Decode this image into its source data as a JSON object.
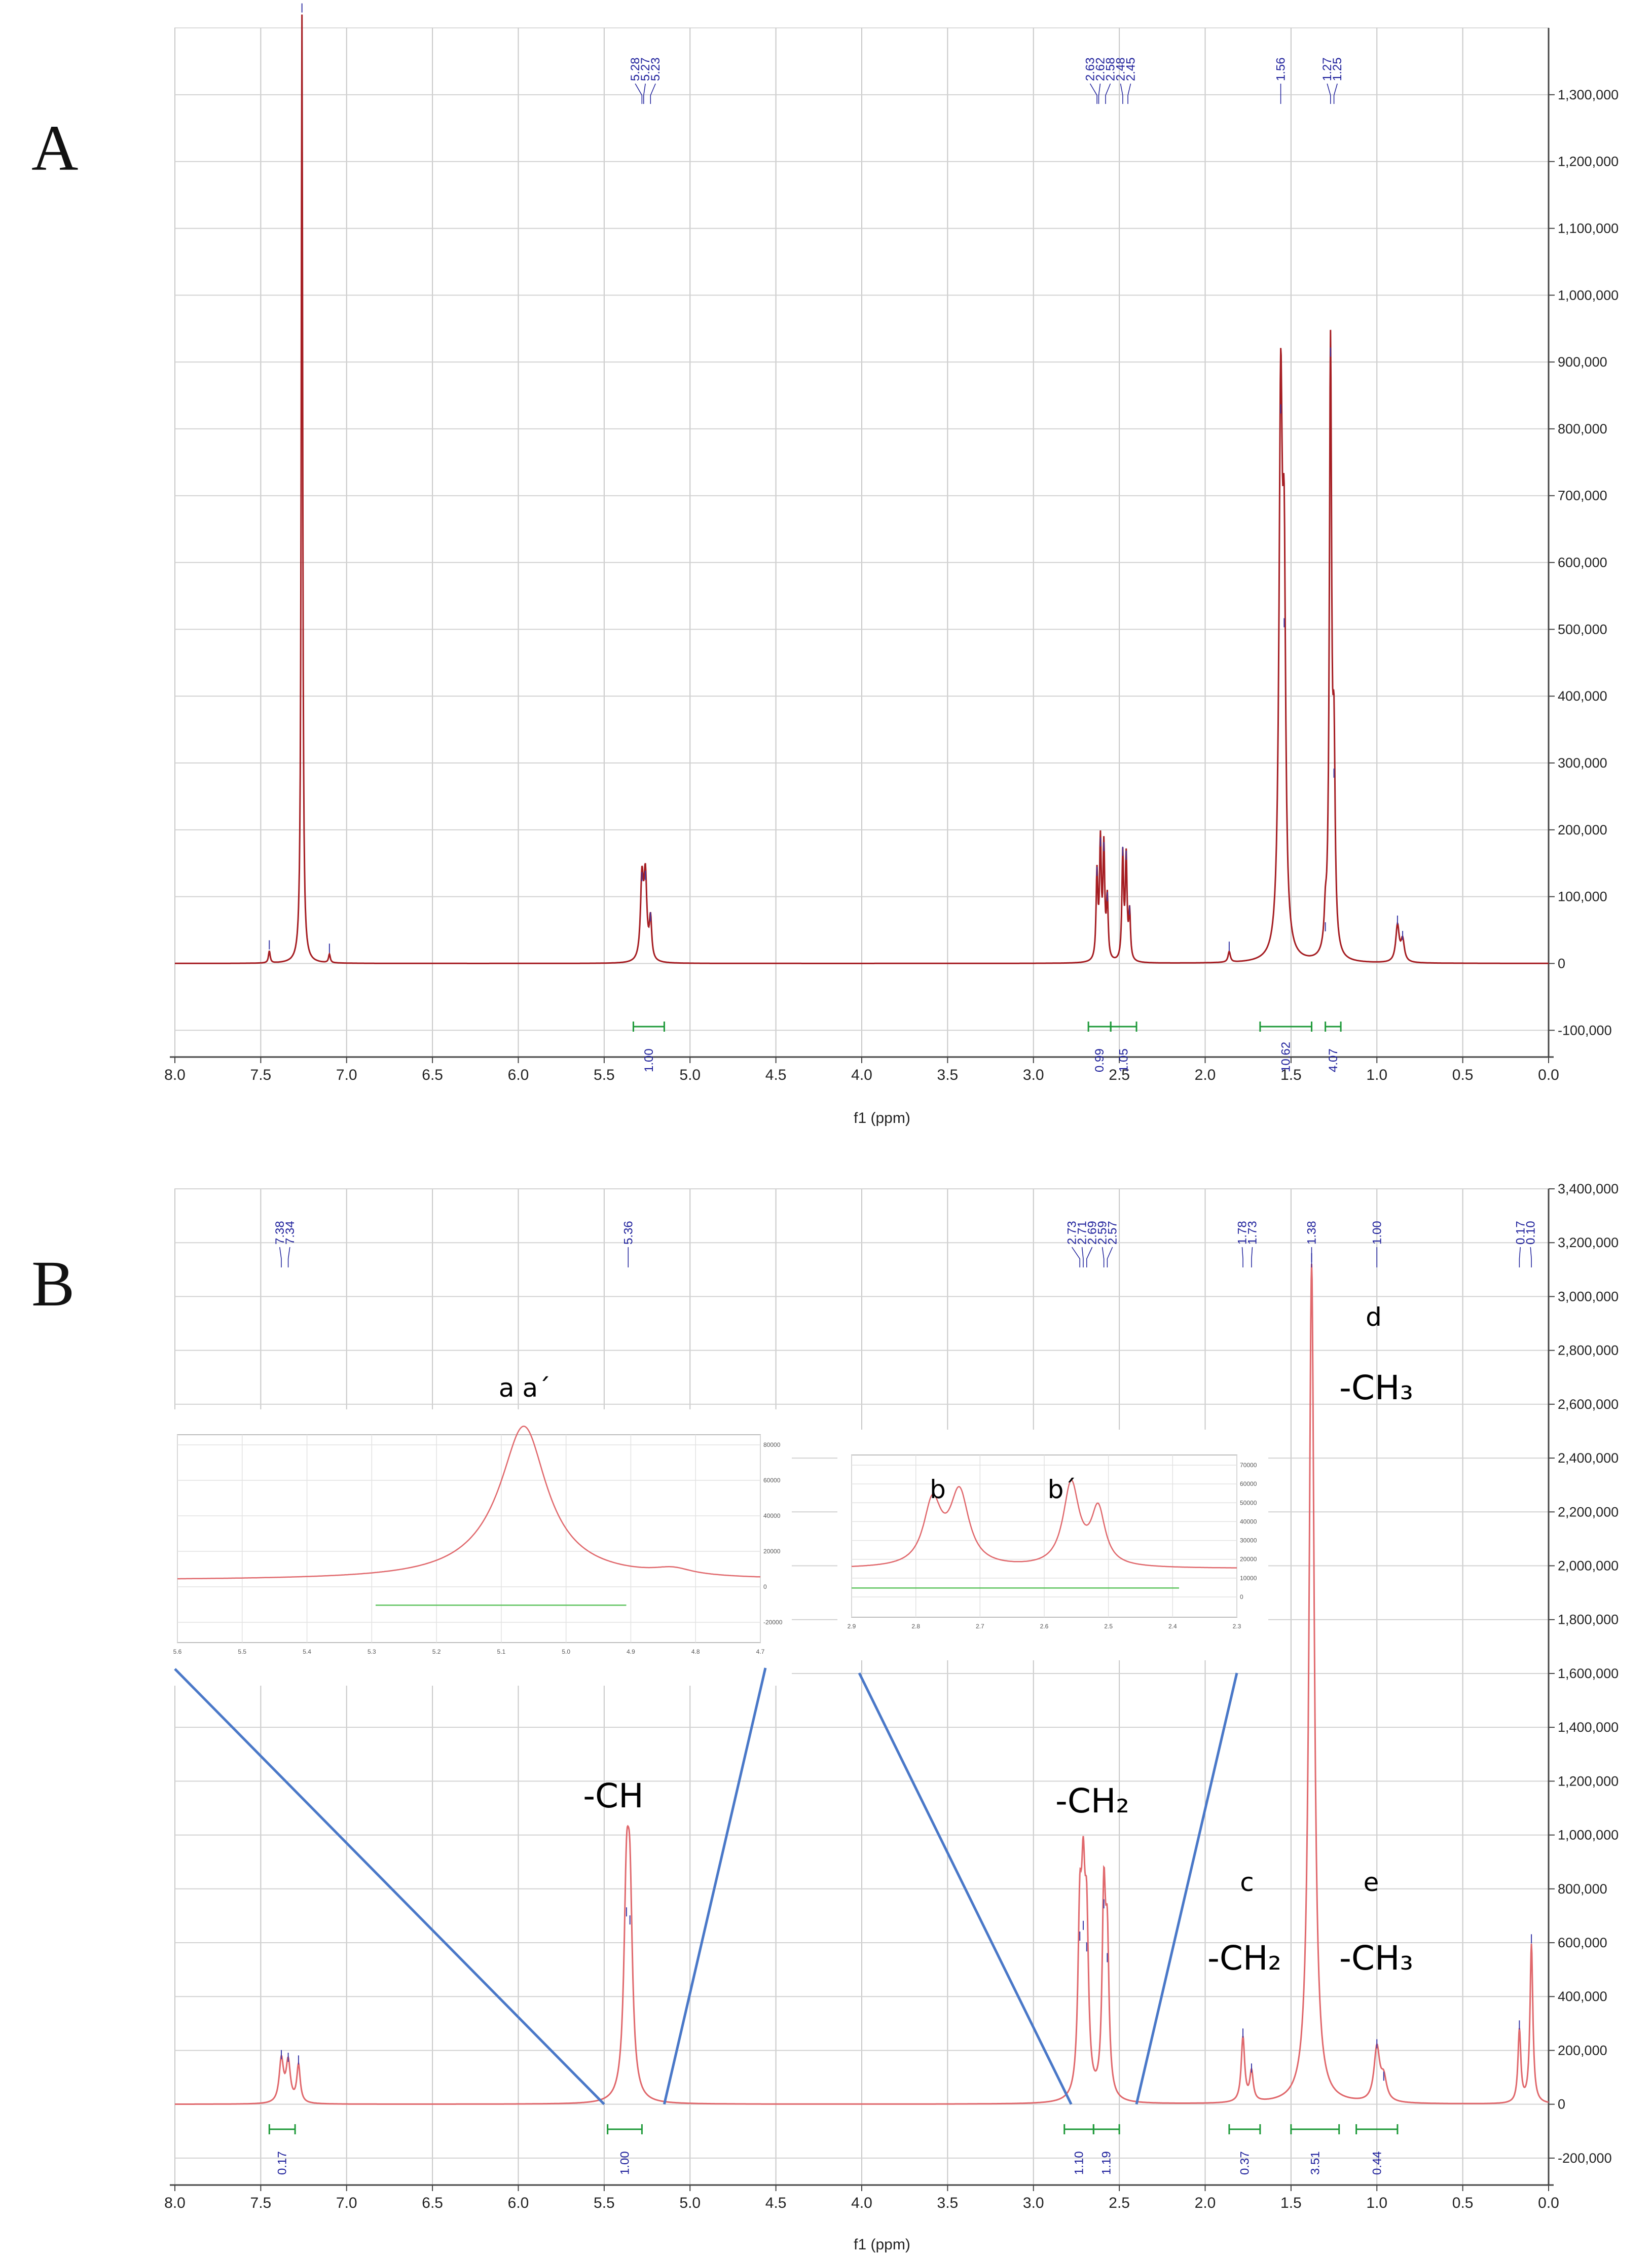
{
  "panels": [
    {
      "label": "A",
      "xlabel": "f1 (ppm)",
      "xlim": [
        8.0,
        0.0
      ],
      "ylim": [
        -140000,
        1400000
      ],
      "x_ticks": [
        "8.0",
        "7.5",
        "7.0",
        "6.5",
        "6.0",
        "5.5",
        "5.0",
        "4.5",
        "4.0",
        "3.5",
        "3.0",
        "2.5",
        "2.0",
        "1.5",
        "1.0",
        "0.5",
        "0.0"
      ],
      "y_ticks": [
        "-100,000",
        "0",
        "100,000",
        "200,000",
        "300,000",
        "400,000",
        "500,000",
        "600,000",
        "700,000",
        "800,000",
        "900,000",
        "1,000,000",
        "1,100,000",
        "1,200,000",
        "1,300,000"
      ],
      "peak_labels": [
        {
          "group": [
            5.28,
            5.27,
            5.23
          ],
          "text": [
            "5.28",
            "5.27",
            "5.23"
          ]
        },
        {
          "group": [
            2.63,
            2.62,
            2.58,
            2.48,
            2.45
          ],
          "text": [
            "2.63",
            "2.62",
            "2.58",
            "2.48",
            "2.45"
          ]
        },
        {
          "group": [
            1.56
          ],
          "text": [
            "1.56"
          ]
        },
        {
          "group": [
            1.27,
            1.25
          ],
          "text": [
            "1.27",
            "1.25"
          ]
        }
      ],
      "integrals": [
        {
          "from": 5.33,
          "to": 5.15,
          "value": "1.00"
        },
        {
          "from": 2.68,
          "to": 2.55,
          "value": "0.99"
        },
        {
          "from": 2.55,
          "to": 2.4,
          "value": "1.05"
        },
        {
          "from": 1.68,
          "to": 1.38,
          "value": "10.62"
        },
        {
          "from": 1.3,
          "to": 1.21,
          "value": "4.07"
        }
      ]
    },
    {
      "label": "B",
      "xlabel": "f1 (ppm)",
      "xlim": [
        8.0,
        0.0
      ],
      "ylim": [
        -300000,
        3400000
      ],
      "x_ticks": [
        "8.0",
        "7.5",
        "7.0",
        "6.5",
        "6.0",
        "5.5",
        "5.0",
        "4.5",
        "4.0",
        "3.5",
        "3.0",
        "2.5",
        "2.0",
        "1.5",
        "1.0",
        "0.5",
        "0.0"
      ],
      "y_ticks": [
        "-200,000",
        "0",
        "200,000",
        "400,000",
        "600,000",
        "800,000",
        "1,000,000",
        "1,200,000",
        "1,400,000",
        "1,600,000",
        "1,800,000",
        "2,000,000",
        "2,200,000",
        "2,400,000",
        "2,600,000",
        "2,800,000",
        "3,000,000",
        "3,200,000",
        "3,400,000"
      ],
      "peak_labels": [
        {
          "group": [
            7.38,
            7.34
          ],
          "text": [
            "7.38",
            "7.34"
          ]
        },
        {
          "group": [
            5.36
          ],
          "text": [
            "5.36"
          ]
        },
        {
          "group": [
            2.73,
            2.71,
            2.69,
            2.59,
            2.57
          ],
          "text": [
            "2.73",
            "2.71",
            "2.69",
            "2.59",
            "2.57"
          ]
        },
        {
          "group": [
            1.78,
            1.73
          ],
          "text": [
            "1.78",
            "1.73"
          ]
        },
        {
          "group": [
            1.38
          ],
          "text": [
            "1.38"
          ]
        },
        {
          "group": [
            1.0
          ],
          "text": [
            "1.00"
          ]
        },
        {
          "group": [
            0.17,
            0.1
          ],
          "text": [
            "0.17",
            "0.10"
          ]
        }
      ],
      "integrals": [
        {
          "from": 7.45,
          "to": 7.3,
          "value": "0.17"
        },
        {
          "from": 5.48,
          "to": 5.28,
          "value": "1.00"
        },
        {
          "from": 2.82,
          "to": 2.65,
          "value": "1.10"
        },
        {
          "from": 2.65,
          "to": 2.5,
          "value": "1.19"
        },
        {
          "from": 1.86,
          "to": 1.68,
          "value": "0.37"
        },
        {
          "from": 1.5,
          "to": 1.22,
          "value": "3.51"
        },
        {
          "from": 1.12,
          "to": 0.88,
          "value": "0.44"
        }
      ],
      "annotations": [
        {
          "id": "a-label",
          "text": "a a´"
        },
        {
          "id": "b-label",
          "text": "b"
        },
        {
          "id": "b-prime-label",
          "text": "b´"
        },
        {
          "id": "ch-label",
          "text": "-CH"
        },
        {
          "id": "ch2-label",
          "text": "-CH₂"
        },
        {
          "id": "c-label",
          "text": "c"
        },
        {
          "id": "c-ch2-label",
          "text": "-CH₂"
        },
        {
          "id": "d-label",
          "text": "d"
        },
        {
          "id": "d-ch3-label",
          "text": "-CH₃"
        },
        {
          "id": "e-label",
          "text": "e"
        },
        {
          "id": "e-ch3-label",
          "text": "-CH₃"
        }
      ]
    }
  ],
  "chart_data": [
    {
      "type": "line",
      "panel": "A",
      "xlabel": "f1 (ppm)",
      "ylabel": "",
      "xlim": [
        8.0,
        0.0
      ],
      "ylim": [
        -140000,
        1400000
      ],
      "grid": true,
      "peaks": [
        {
          "x": 7.45,
          "y": 18000,
          "w": 0.006
        },
        {
          "x": 7.26,
          "y": 1420000,
          "w": 0.005
        },
        {
          "x": 7.1,
          "y": 13000,
          "w": 0.006
        },
        {
          "x": 5.28,
          "y": 120000,
          "w": 0.01
        },
        {
          "x": 5.26,
          "y": 122000,
          "w": 0.01
        },
        {
          "x": 5.23,
          "y": 60000,
          "w": 0.008
        },
        {
          "x": 2.63,
          "y": 128000,
          "w": 0.006
        },
        {
          "x": 2.61,
          "y": 172000,
          "w": 0.006
        },
        {
          "x": 2.59,
          "y": 165000,
          "w": 0.006
        },
        {
          "x": 2.57,
          "y": 90000,
          "w": 0.006
        },
        {
          "x": 2.48,
          "y": 158000,
          "w": 0.006
        },
        {
          "x": 2.46,
          "y": 152000,
          "w": 0.006
        },
        {
          "x": 2.44,
          "y": 70000,
          "w": 0.006
        },
        {
          "x": 1.86,
          "y": 16000,
          "w": 0.008
        },
        {
          "x": 1.56,
          "y": 820000,
          "w": 0.012
        },
        {
          "x": 1.54,
          "y": 500000,
          "w": 0.01
        },
        {
          "x": 1.27,
          "y": 905000,
          "w": 0.008
        },
        {
          "x": 1.25,
          "y": 275000,
          "w": 0.008
        },
        {
          "x": 1.3,
          "y": 45000,
          "w": 0.008
        },
        {
          "x": 0.88,
          "y": 55000,
          "w": 0.012
        },
        {
          "x": 0.85,
          "y": 32000,
          "w": 0.012
        }
      ]
    },
    {
      "type": "line",
      "panel": "B",
      "xlabel": "f1 (ppm)",
      "ylabel": "",
      "xlim": [
        8.0,
        0.0
      ],
      "ylim": [
        -300000,
        3400000
      ],
      "grid": true,
      "peaks": [
        {
          "x": 7.38,
          "y": 160000,
          "w": 0.015
        },
        {
          "x": 7.34,
          "y": 150000,
          "w": 0.015
        },
        {
          "x": 7.28,
          "y": 140000,
          "w": 0.012
        },
        {
          "x": 5.37,
          "y": 690000,
          "w": 0.018
        },
        {
          "x": 5.35,
          "y": 660000,
          "w": 0.018
        },
        {
          "x": 2.73,
          "y": 600000,
          "w": 0.013
        },
        {
          "x": 2.71,
          "y": 640000,
          "w": 0.013
        },
        {
          "x": 2.69,
          "y": 560000,
          "w": 0.013
        },
        {
          "x": 2.59,
          "y": 720000,
          "w": 0.012
        },
        {
          "x": 2.57,
          "y": 520000,
          "w": 0.012
        },
        {
          "x": 1.78,
          "y": 240000,
          "w": 0.012
        },
        {
          "x": 1.73,
          "y": 110000,
          "w": 0.012
        },
        {
          "x": 1.38,
          "y": 3120000,
          "w": 0.018
        },
        {
          "x": 1.0,
          "y": 200000,
          "w": 0.02
        },
        {
          "x": 0.96,
          "y": 80000,
          "w": 0.02
        },
        {
          "x": 0.17,
          "y": 270000,
          "w": 0.01
        },
        {
          "x": 0.1,
          "y": 590000,
          "w": 0.01
        }
      ],
      "insets": [
        {
          "name": "inset a a´",
          "x_ticks": [
            "5.6",
            "5.5",
            "5.4",
            "5.3",
            "5.2",
            "5.1",
            "5.0",
            "4.9",
            "4.8",
            "4.7"
          ],
          "y_ticks": [
            "-20000",
            "0",
            "20000",
            "40000",
            "60000",
            "80000"
          ]
        },
        {
          "name": "inset b b´",
          "x_ticks": [
            "2.9",
            "2.8",
            "2.7",
            "2.6",
            "2.5",
            "2.4",
            "2.3"
          ],
          "y_ticks": [
            "0",
            "10000",
            "20000",
            "30000",
            "40000",
            "50000",
            "60000",
            "70000"
          ]
        }
      ]
    }
  ]
}
